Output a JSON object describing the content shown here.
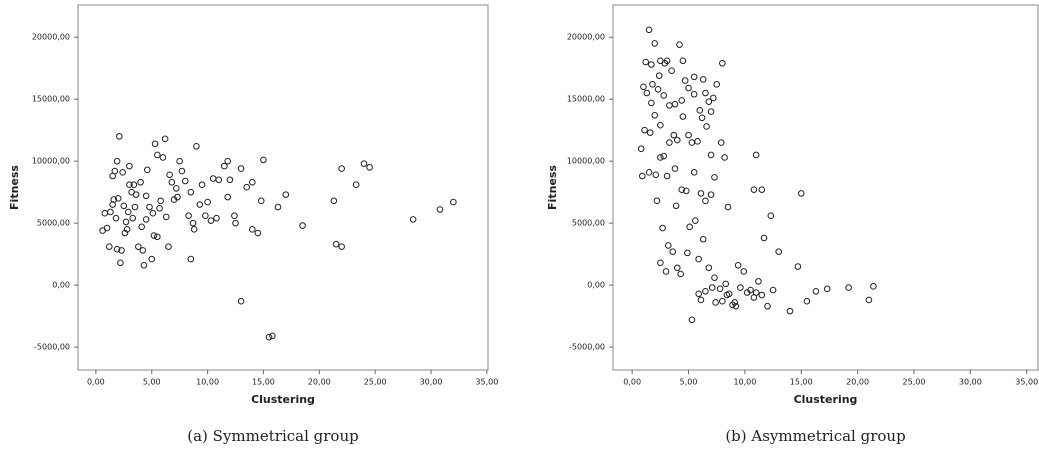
{
  "chart_data": [
    {
      "type": "scatter",
      "caption": "(a) Symmetrical group",
      "x_label": "Clustering",
      "y_label": "Fitness",
      "xlim": [
        -1.6,
        35.1
      ],
      "ylim": [
        -6850,
        22600
      ],
      "xticks": [
        {
          "value": 0,
          "label": "0,00"
        },
        {
          "value": 5,
          "label": "5,00"
        },
        {
          "value": 10,
          "label": "10,00"
        },
        {
          "value": 15,
          "label": "15,00"
        },
        {
          "value": 20,
          "label": "20,00"
        },
        {
          "value": 25,
          "label": "25,00"
        },
        {
          "value": 30,
          "label": "30,00"
        },
        {
          "value": 35,
          "label": "35,00"
        }
      ],
      "yticks": [
        {
          "value": -5000,
          "label": "-5000,00"
        },
        {
          "value": 0,
          "label": "0,00"
        },
        {
          "value": 5000,
          "label": "5000,00"
        },
        {
          "value": 10000,
          "label": "10000,00"
        },
        {
          "value": 15000,
          "label": "15000,00"
        },
        {
          "value": 20000,
          "label": "20000,00"
        }
      ],
      "color": "#222222",
      "x": [
        13,
        15.5,
        15.8,
        18.5,
        21.3,
        21.5,
        22,
        22,
        23.3,
        24,
        24.5,
        28.4,
        30.8,
        32,
        16.3,
        17,
        15,
        14.8,
        14.5,
        14,
        14,
        13.5,
        13,
        12.5,
        12.4,
        12,
        11.8,
        11.5,
        11.8,
        11,
        10.5,
        10.8,
        10.3,
        10,
        9.8,
        9.5,
        9.3,
        9,
        8.8,
        8.5,
        8.7,
        8.3,
        8.5,
        8,
        7.7,
        7.5,
        7.3,
        7,
        6.8,
        6.5,
        6.3,
        6.2,
        6,
        5.8,
        5.5,
        5.3,
        5.2,
        5.5,
        5,
        4.8,
        4.5,
        4.3,
        4.2,
        4.5,
        4,
        3.8,
        3.5,
        3.3,
        3,
        3.2,
        3,
        2.8,
        2.7,
        2.5,
        2.3,
        2.2,
        2.1,
        2,
        1.9,
        1.8,
        1.7,
        1.5,
        1.5,
        1.3,
        1.2,
        1,
        0.8,
        0.6,
        2.4,
        3.6,
        4.6,
        5.7,
        6.6,
        7.2,
        1.9,
        2.6,
        3.4,
        4.1,
        5.1,
        1.6,
        2.9
      ],
      "values": [
        -1300,
        -4200,
        -4100,
        4800,
        6800,
        3300,
        3100,
        9400,
        8100,
        9800,
        9500,
        5300,
        6100,
        6700,
        6300,
        7300,
        10100,
        6800,
        4200,
        4500,
        8300,
        7900,
        9400,
        5000,
        5600,
        8500,
        7100,
        9600,
        10000,
        8500,
        8600,
        5400,
        5200,
        6700,
        5600,
        8100,
        6500,
        11200,
        4500,
        2100,
        5000,
        5600,
        7500,
        8400,
        9200,
        10000,
        7100,
        6900,
        8300,
        3100,
        5500,
        11800,
        10300,
        6800,
        10500,
        11400,
        4000,
        3900,
        2100,
        6300,
        7200,
        1600,
        2800,
        5300,
        8300,
        3100,
        6300,
        5400,
        8100,
        7500,
        9600,
        4500,
        5100,
        6400,
        2800,
        1800,
        12000,
        7000,
        10000,
        5400,
        9200,
        8800,
        6500,
        5900,
        3100,
        4600,
        5800,
        4400,
        9100,
        7300,
        9300,
        6200,
        8900,
        7800,
        2900,
        4200,
        8100,
        4700,
        5800,
        6900,
        5900
      ]
    },
    {
      "type": "scatter",
      "caption": "(b) Asymmetrical group",
      "x_label": "Clustering",
      "y_label": "Fitness",
      "xlim": [
        -1.7,
        36
      ],
      "ylim": [
        -6850,
        22600
      ],
      "xticks": [
        {
          "value": 0,
          "label": "0,00"
        },
        {
          "value": 5,
          "label": "5,00"
        },
        {
          "value": 10,
          "label": "10,00"
        },
        {
          "value": 15,
          "label": "15,00"
        },
        {
          "value": 20,
          "label": "20,00"
        },
        {
          "value": 25,
          "label": "25,00"
        },
        {
          "value": 30,
          "label": "30,00"
        },
        {
          "value": 35,
          "label": "35,00"
        }
      ],
      "yticks": [
        {
          "value": -5000,
          "label": "-5000,00"
        },
        {
          "value": 0,
          "label": "0,00"
        },
        {
          "value": 5000,
          "label": "5000,00"
        },
        {
          "value": 10000,
          "label": "10000,00"
        },
        {
          "value": 15000,
          "label": "15000,00"
        },
        {
          "value": 20000,
          "label": "20000,00"
        }
      ],
      "color": "#222222",
      "x": [
        1.5,
        1.2,
        1.7,
        2,
        2.5,
        2.9,
        3.1,
        4.2,
        4.5,
        5.5,
        6.3,
        7.5,
        8,
        1,
        1.3,
        1.8,
        2.3,
        2.8,
        3.3,
        3.8,
        4.4,
        5,
        5.5,
        6,
        6.5,
        7,
        7.2,
        0.8,
        1.1,
        1.6,
        2,
        2.5,
        2.8,
        3.3,
        3.7,
        4,
        4.5,
        5,
        5.3,
        5.8,
        6.2,
        6.6,
        7,
        7.9,
        8.2,
        11,
        0.9,
        1.5,
        2.1,
        2.5,
        3.1,
        3.8,
        4.4,
        4.8,
        5.5,
        6.1,
        7,
        7.3,
        8.5,
        10.8,
        11.5,
        15,
        12.3,
        11.7,
        2.7,
        3.2,
        3.6,
        4,
        4.3,
        2.5,
        3,
        5.1,
        5.9,
        6.3,
        6.8,
        7.3,
        7.8,
        8.3,
        8.6,
        9.1,
        9.4,
        9.9,
        10.5,
        11,
        11.5,
        12,
        12.5,
        13,
        14,
        14.7,
        15.5,
        16.3,
        17.3,
        19.2,
        21,
        21.4,
        5.3,
        6.1,
        7.4,
        8,
        8.9,
        9.2,
        10.2,
        6.5,
        5.9,
        7.1,
        8.4,
        9.6,
        11.2,
        10.8,
        4.9,
        3.9,
        5.6,
        6.5,
        2.2,
        1.7,
        2.4,
        3.5,
        4.7,
        6.8
      ],
      "values": [
        20600,
        18000,
        17800,
        19500,
        18100,
        17900,
        18100,
        19400,
        18100,
        16800,
        16600,
        16200,
        17900,
        16000,
        15500,
        16200,
        15800,
        15300,
        14500,
        14600,
        14900,
        15900,
        15400,
        14100,
        15500,
        14000,
        15100,
        11000,
        12500,
        12300,
        13700,
        12900,
        10400,
        11500,
        12100,
        11700,
        13600,
        12100,
        11500,
        11600,
        13500,
        12800,
        10500,
        11500,
        10300,
        10500,
        8800,
        9100,
        8900,
        10300,
        8800,
        9400,
        7700,
        7600,
        9100,
        7400,
        7300,
        8700,
        6300,
        7700,
        7700,
        7400,
        5600,
        3800,
        4600,
        3200,
        2700,
        1400,
        900,
        1800,
        1100,
        4700,
        2100,
        3700,
        1400,
        600,
        -300,
        100,
        -700,
        -1400,
        1600,
        1100,
        -400,
        -600,
        -800,
        -1700,
        -400,
        2700,
        -2100,
        1500,
        -1300,
        -500,
        -300,
        -200,
        -1200,
        -100,
        -2800,
        -1200,
        -1400,
        -1300,
        -1600,
        -1700,
        -600,
        -500,
        -700,
        -200,
        -800,
        -200,
        300,
        -1000,
        2600,
        6400,
        5200,
        6800,
        6800,
        14700,
        16900,
        17300,
        16500,
        14800
      ]
    }
  ]
}
